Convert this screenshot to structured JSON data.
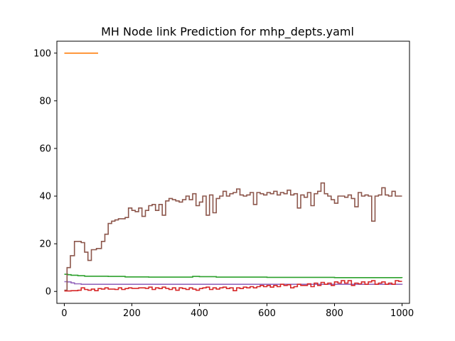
{
  "chart_data": {
    "type": "line",
    "title": "MH Node link Prediction for mhp_depts.yaml",
    "xlabel": "",
    "ylabel": "",
    "xlim": [
      -22,
      1022
    ],
    "ylim": [
      -5,
      105
    ],
    "xticks": [
      0,
      200,
      400,
      600,
      800,
      1000
    ],
    "yticks": [
      0,
      20,
      40,
      60,
      80,
      100
    ],
    "grid": false,
    "legend": "none",
    "series": [
      {
        "color": "#ff7f0e",
        "step": false,
        "points": [
          [
            0,
            100
          ],
          [
            100,
            100
          ]
        ]
      },
      {
        "color": "#2ca02c",
        "step": true,
        "points": [
          [
            0,
            7.2
          ],
          [
            10,
            7.0
          ],
          [
            20,
            6.8
          ],
          [
            40,
            6.6
          ],
          [
            60,
            6.4
          ],
          [
            100,
            6.4
          ],
          [
            130,
            6.3
          ],
          [
            180,
            6.1
          ],
          [
            250,
            6.0
          ],
          [
            300,
            6.0
          ],
          [
            370,
            6.0
          ],
          [
            380,
            6.3
          ],
          [
            400,
            6.2
          ],
          [
            450,
            6.0
          ],
          [
            500,
            6.0
          ],
          [
            600,
            5.9
          ],
          [
            700,
            5.9
          ],
          [
            800,
            5.8
          ],
          [
            900,
            5.8
          ],
          [
            1000,
            5.7
          ]
        ]
      },
      {
        "color": "#9467bd",
        "step": true,
        "points": [
          [
            0,
            4.1
          ],
          [
            10,
            4.0
          ],
          [
            20,
            3.6
          ],
          [
            30,
            3.2
          ],
          [
            50,
            3.0
          ],
          [
            100,
            3.0
          ],
          [
            200,
            3.0
          ],
          [
            300,
            3.0
          ],
          [
            400,
            3.0
          ],
          [
            500,
            3.0
          ],
          [
            600,
            3.0
          ],
          [
            700,
            3.0
          ],
          [
            800,
            3.0
          ],
          [
            900,
            3.0
          ],
          [
            1000,
            2.8
          ]
        ]
      },
      {
        "color": "#8c564b",
        "step": true,
        "points": [
          [
            0,
            0.5
          ],
          [
            8,
            10
          ],
          [
            18,
            15
          ],
          [
            30,
            21
          ],
          [
            50,
            20.5
          ],
          [
            60,
            16.5
          ],
          [
            70,
            13
          ],
          [
            80,
            17.5
          ],
          [
            95,
            18
          ],
          [
            110,
            21
          ],
          [
            120,
            24
          ],
          [
            130,
            28.5
          ],
          [
            140,
            29.5
          ],
          [
            150,
            30
          ],
          [
            160,
            30.5
          ],
          [
            170,
            30.5
          ],
          [
            180,
            31
          ],
          [
            190,
            35
          ],
          [
            200,
            34
          ],
          [
            210,
            33.5
          ],
          [
            220,
            35
          ],
          [
            230,
            31.5
          ],
          [
            240,
            34
          ],
          [
            250,
            36
          ],
          [
            260,
            36.5
          ],
          [
            270,
            34
          ],
          [
            280,
            36.5
          ],
          [
            290,
            32
          ],
          [
            300,
            38
          ],
          [
            310,
            39
          ],
          [
            320,
            38.5
          ],
          [
            330,
            38
          ],
          [
            340,
            37.5
          ],
          [
            350,
            38.5
          ],
          [
            360,
            40
          ],
          [
            370,
            38.5
          ],
          [
            380,
            41
          ],
          [
            390,
            36
          ],
          [
            400,
            37.5
          ],
          [
            410,
            40
          ],
          [
            420,
            32
          ],
          [
            430,
            40.5
          ],
          [
            440,
            33
          ],
          [
            450,
            39
          ],
          [
            460,
            40
          ],
          [
            470,
            42
          ],
          [
            480,
            40
          ],
          [
            490,
            41
          ],
          [
            500,
            41.5
          ],
          [
            510,
            43
          ],
          [
            520,
            40.5
          ],
          [
            530,
            40
          ],
          [
            540,
            40.5
          ],
          [
            550,
            41.5
          ],
          [
            560,
            36.5
          ],
          [
            570,
            41.5
          ],
          [
            580,
            41
          ],
          [
            590,
            40.5
          ],
          [
            600,
            41.5
          ],
          [
            610,
            41
          ],
          [
            620,
            42
          ],
          [
            630,
            40.5
          ],
          [
            640,
            41.5
          ],
          [
            650,
            41
          ],
          [
            660,
            42.5
          ],
          [
            670,
            40.5
          ],
          [
            680,
            41
          ],
          [
            690,
            35
          ],
          [
            700,
            40.5
          ],
          [
            710,
            39.5
          ],
          [
            720,
            41.5
          ],
          [
            730,
            36
          ],
          [
            740,
            41
          ],
          [
            750,
            42
          ],
          [
            760,
            45.5
          ],
          [
            770,
            41
          ],
          [
            780,
            40
          ],
          [
            790,
            38.5
          ],
          [
            800,
            37
          ],
          [
            810,
            40
          ],
          [
            820,
            40
          ],
          [
            830,
            39.5
          ],
          [
            840,
            40.5
          ],
          [
            850,
            39
          ],
          [
            860,
            35.5
          ],
          [
            870,
            41.5
          ],
          [
            880,
            40
          ],
          [
            890,
            40.5
          ],
          [
            900,
            40
          ],
          [
            910,
            29.5
          ],
          [
            920,
            40
          ],
          [
            930,
            40.5
          ],
          [
            940,
            43.5
          ],
          [
            950,
            40.5
          ],
          [
            960,
            40
          ],
          [
            970,
            42
          ],
          [
            980,
            40
          ],
          [
            990,
            40
          ],
          [
            1000,
            40
          ]
        ]
      },
      {
        "color": "#d62728",
        "step": true,
        "points": [
          [
            0,
            0.2
          ],
          [
            20,
            0.3
          ],
          [
            40,
            0.5
          ],
          [
            50,
            1.5
          ],
          [
            60,
            0.8
          ],
          [
            70,
            0.5
          ],
          [
            80,
            1.0
          ],
          [
            90,
            0.3
          ],
          [
            100,
            1.2
          ],
          [
            110,
            1.0
          ],
          [
            120,
            1.5
          ],
          [
            130,
            1.0
          ],
          [
            150,
            0.8
          ],
          [
            160,
            1.5
          ],
          [
            170,
            0.8
          ],
          [
            180,
            1.2
          ],
          [
            190,
            1.5
          ],
          [
            200,
            1.3
          ],
          [
            220,
            1.5
          ],
          [
            240,
            1.3
          ],
          [
            250,
            1.8
          ],
          [
            260,
            0.8
          ],
          [
            270,
            1.5
          ],
          [
            280,
            1.2
          ],
          [
            290,
            1.8
          ],
          [
            300,
            1.3
          ],
          [
            310,
            0.8
          ],
          [
            320,
            1.5
          ],
          [
            330,
            0.5
          ],
          [
            340,
            1.5
          ],
          [
            350,
            1.2
          ],
          [
            360,
            0.8
          ],
          [
            370,
            1.5
          ],
          [
            380,
            1.0
          ],
          [
            390,
            0.5
          ],
          [
            400,
            1.2
          ],
          [
            410,
            1.5
          ],
          [
            420,
            1.8
          ],
          [
            430,
            0.8
          ],
          [
            440,
            1.5
          ],
          [
            450,
            1.0
          ],
          [
            460,
            1.5
          ],
          [
            470,
            1.8
          ],
          [
            480,
            1.2
          ],
          [
            490,
            1.5
          ],
          [
            500,
            0.3
          ],
          [
            510,
            1.5
          ],
          [
            520,
            1.2
          ],
          [
            530,
            1.8
          ],
          [
            540,
            1.5
          ],
          [
            550,
            2.0
          ],
          [
            560,
            1.5
          ],
          [
            570,
            2.0
          ],
          [
            580,
            2.5
          ],
          [
            590,
            2.0
          ],
          [
            600,
            2.5
          ],
          [
            610,
            1.8
          ],
          [
            620,
            2.5
          ],
          [
            630,
            2.0
          ],
          [
            640,
            3.0
          ],
          [
            650,
            2.5
          ],
          [
            660,
            2.8
          ],
          [
            670,
            1.5
          ],
          [
            680,
            2.0
          ],
          [
            690,
            3.0
          ],
          [
            700,
            2.5
          ],
          [
            710,
            2.5
          ],
          [
            720,
            3.2
          ],
          [
            730,
            2.0
          ],
          [
            740,
            3.5
          ],
          [
            750,
            2.5
          ],
          [
            760,
            3.8
          ],
          [
            770,
            3.0
          ],
          [
            780,
            3.5
          ],
          [
            790,
            2.5
          ],
          [
            800,
            4.0
          ],
          [
            810,
            3.5
          ],
          [
            820,
            4.5
          ],
          [
            830,
            3.5
          ],
          [
            840,
            4.5
          ],
          [
            850,
            2.5
          ],
          [
            860,
            3.5
          ],
          [
            870,
            3.2
          ],
          [
            880,
            4.0
          ],
          [
            890,
            3.0
          ],
          [
            900,
            4.0
          ],
          [
            910,
            4.5
          ],
          [
            920,
            3.0
          ],
          [
            930,
            3.5
          ],
          [
            940,
            4.0
          ],
          [
            950,
            3.0
          ],
          [
            960,
            3.5
          ],
          [
            970,
            3.0
          ],
          [
            980,
            4.5
          ],
          [
            990,
            4.2
          ],
          [
            1000,
            4.2
          ]
        ]
      }
    ]
  }
}
